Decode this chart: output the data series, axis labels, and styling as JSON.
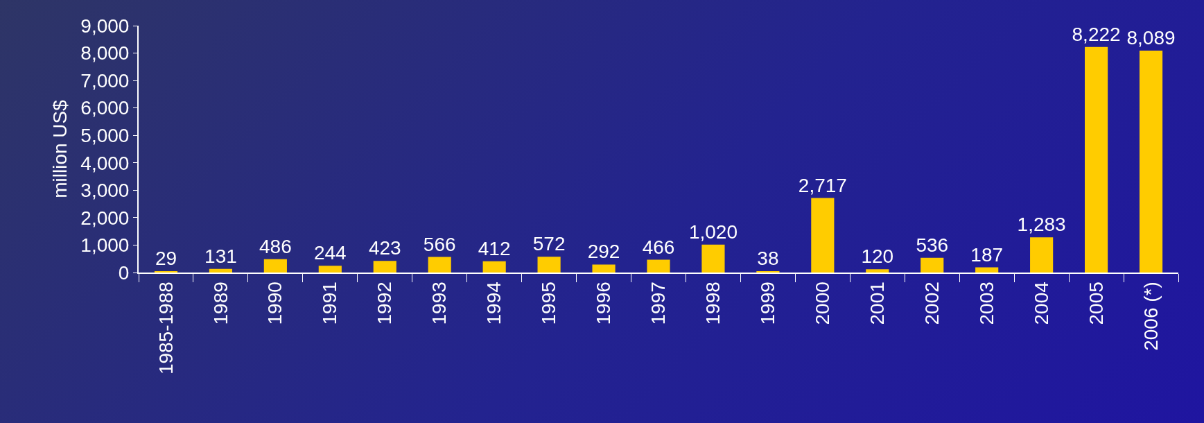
{
  "chart_data": {
    "type": "bar",
    "ylabel": "million US$",
    "categories": [
      "1985-1988",
      "1989",
      "1990",
      "1991",
      "1992",
      "1993",
      "1994",
      "1995",
      "1996",
      "1997",
      "1998",
      "1999",
      "2000",
      "2001",
      "2002",
      "2003",
      "2004",
      "2005",
      "2006 (*)"
    ],
    "values": [
      29,
      131,
      486,
      244,
      423,
      566,
      412,
      572,
      292,
      466,
      1020,
      38,
      2717,
      120,
      536,
      187,
      1283,
      8222,
      8089
    ],
    "value_labels": [
      "29",
      "131",
      "486",
      "244",
      "423",
      "566",
      "412",
      "572",
      "292",
      "466",
      "1,020",
      "38",
      "2,717",
      "120",
      "536",
      "187",
      "1,283",
      "8,222",
      "8,089"
    ],
    "color": "#ffcc00",
    "ylim": [
      0,
      9000
    ],
    "yticks": [
      0,
      {
        "value": 1000,
        "label": "1,000"
      },
      {
        "value": 2000,
        "label": "2,000"
      },
      {
        "value": 3000,
        "label": "3,000"
      },
      {
        "value": 4000,
        "label": "4,000"
      },
      {
        "value": 5000,
        "label": "5,000"
      },
      {
        "value": 6000,
        "label": "6,000"
      },
      {
        "value": 7000,
        "label": "7,000"
      },
      {
        "value": 8000,
        "label": "8,000"
      },
      {
        "value": 9000,
        "label": "9,000"
      }
    ],
    "grid": false,
    "legend": false
  }
}
